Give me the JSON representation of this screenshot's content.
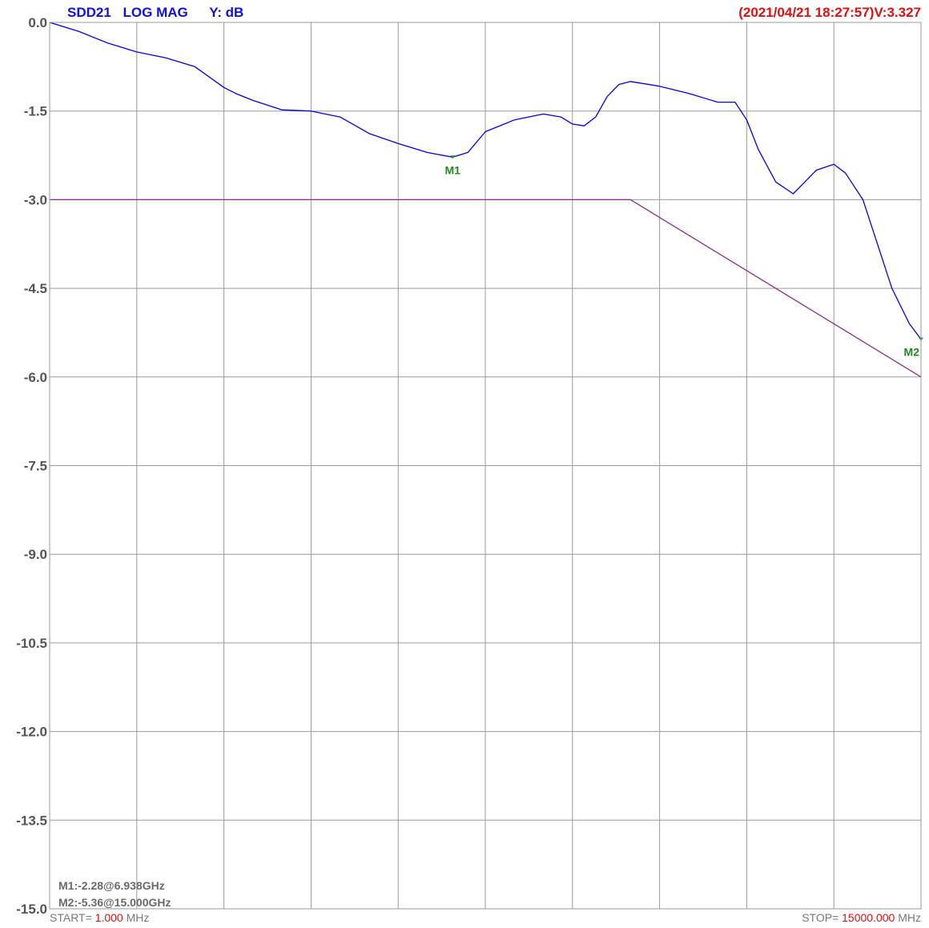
{
  "header": {
    "trace": "SDD21",
    "format": "LOG MAG",
    "yunit": "Y: dB",
    "status": "(2021/04/21 18:27:57)V:3.327"
  },
  "footer": {
    "start_label": "START=",
    "start_value": "1.000",
    "start_unit": "MHz",
    "stop_label": "STOP=",
    "stop_value": "15000.000",
    "stop_unit": "MHz"
  },
  "marker_readouts": [
    "M1:-2.28@6.938GHz",
    "M2:-5.36@15.000GHz"
  ],
  "colors": {
    "trace": "#0000ee",
    "limit": "#8a2a8a",
    "header_left": "#1010dd",
    "header_right": "#e01010",
    "marker": "#228822",
    "grid": "#9a9a9a",
    "stop_value": "#e01010"
  },
  "chart_data": {
    "type": "line",
    "x_unit": "MHz",
    "xlim": [
      1,
      15000
    ],
    "ylim": [
      -15.0,
      0.0
    ],
    "yticks": [
      "0.0",
      "-1.5",
      "-3.0",
      "-4.5",
      "-6.0",
      "-7.5",
      "-9.0",
      "-10.5",
      "-12.0",
      "-13.5",
      "-15.0"
    ],
    "ytick_values": [
      0,
      -1.5,
      -3.0,
      -4.5,
      -6.0,
      -7.5,
      -9.0,
      -10.5,
      -12.0,
      -13.5,
      -15.0
    ],
    "x_divisions": 10,
    "grid": true,
    "series": [
      {
        "x": [
          1,
          500,
          1000,
          1500,
          2000,
          2500,
          3000,
          3200,
          3500,
          4000,
          4500,
          5000,
          5500,
          6000,
          6500,
          6938,
          7200,
          7500,
          8000,
          8500,
          8800,
          9000,
          9200,
          9400,
          9600,
          9800,
          10000,
          10500,
          11000,
          11500,
          11800,
          12000,
          12200,
          12500,
          12800,
          13000,
          13200,
          13500,
          13700,
          14000,
          14200,
          14500,
          14800,
          15000
        ],
        "y": [
          0.0,
          -0.15,
          -0.35,
          -0.5,
          -0.6,
          -0.75,
          -1.1,
          -1.2,
          -1.32,
          -1.48,
          -1.5,
          -1.6,
          -1.88,
          -2.05,
          -2.2,
          -2.28,
          -2.2,
          -1.85,
          -1.65,
          -1.55,
          -1.6,
          -1.72,
          -1.75,
          -1.6,
          -1.25,
          -1.05,
          -1.0,
          -1.08,
          -1.2,
          -1.35,
          -1.35,
          -1.65,
          -2.15,
          -2.7,
          -2.9,
          -2.7,
          -2.5,
          -2.4,
          -2.55,
          -3.0,
          -3.6,
          -4.5,
          -5.1,
          -5.36
        ]
      },
      {
        "x": [
          1,
          10000,
          15000
        ],
        "y": [
          -3.0,
          -3.0,
          -6.0
        ]
      }
    ],
    "markers": [
      {
        "label": "M1",
        "x": 6938,
        "y": -2.28
      },
      {
        "label": "M2",
        "x": 15000,
        "y": -5.36
      }
    ]
  }
}
